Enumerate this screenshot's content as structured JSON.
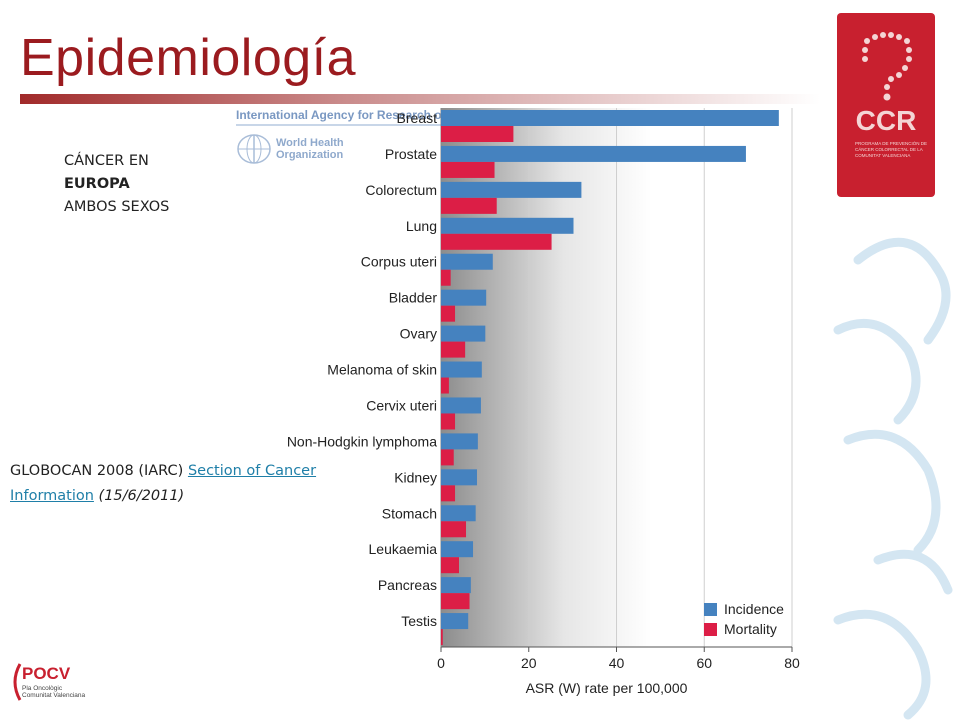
{
  "page": {
    "title": "Epidemiología",
    "label_line1": "CÁNCER EN",
    "label_line2": "EUROPA",
    "label_line3": "AMBOS SEXOS",
    "source_prefix": "GLOBOCAN 2008 (IARC) ",
    "source_link": "Section of Cancer Information",
    "source_date": " (15/6/2011)",
    "iarc_header": "International Agency for Research on Cancer",
    "who_line1": "World Health",
    "who_line2": "Organization",
    "ccr_logo_text": "CCR",
    "ccr_small_text": "PROGRAMA DE PREVENCIÓN DE CÁNCER COLORRECTAL DE LA COMUNITAT VALENCIANA",
    "pocv_logo_text": "POCV",
    "pocv_sub1": "Pla Oncològic",
    "pocv_sub2": "Comunitat Valenciana"
  },
  "colors": {
    "title": "#9b1b1f",
    "incidence": "#4582bf",
    "mortality": "#dc1e46",
    "link": "#1f7fa8",
    "ccr_red": "#c8202f"
  },
  "chart_data": {
    "type": "bar",
    "orientation": "horizontal",
    "categories": [
      "Breast",
      "Prostate",
      "Colorectum",
      "Lung",
      "Corpus uteri",
      "Bladder",
      "Ovary",
      "Melanoma of skin",
      "Cervix uteri",
      "Non-Hodgkin lymphoma",
      "Kidney",
      "Stomach",
      "Leukaemia",
      "Pancreas",
      "Testis"
    ],
    "series": [
      {
        "name": "Incidence",
        "values": [
          77,
          69.5,
          32,
          30.2,
          11.8,
          10.3,
          10.1,
          9.3,
          9.1,
          8.4,
          8.2,
          7.9,
          7.3,
          6.8,
          6.2
        ]
      },
      {
        "name": "Mortality",
        "values": [
          16.5,
          12.2,
          12.7,
          25.2,
          2.2,
          3.2,
          5.5,
          1.8,
          3.2,
          2.9,
          3.2,
          5.7,
          4.1,
          6.5,
          0.4
        ]
      }
    ],
    "xlabel": "ASR (W) rate per 100,000",
    "xlim": [
      0,
      80
    ],
    "xticks": [
      0,
      20,
      40,
      60,
      80
    ],
    "grid": true,
    "legend_position": "bottom-right"
  }
}
